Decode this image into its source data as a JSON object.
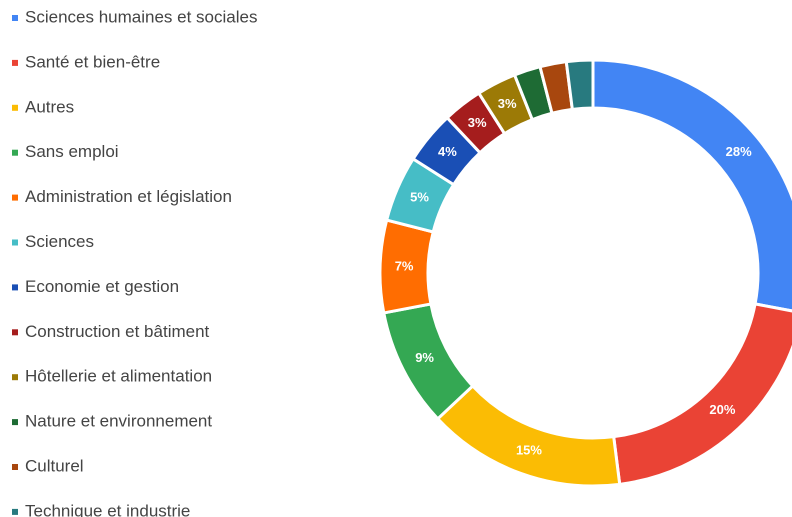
{
  "chart_data": {
    "type": "donut",
    "categories": [
      "Sciences humaines et sociales",
      "Santé et bien-être",
      "Autres",
      "Sans emploi",
      "Administration et législation",
      "Sciences",
      "Economie et gestion",
      "Construction et bâtiment",
      "Hôtellerie et alimentation",
      "Nature et environnement",
      "Culturel",
      "Technique et industrie"
    ],
    "values": [
      28,
      20,
      15,
      9,
      7,
      5,
      4,
      3,
      3,
      2,
      2,
      2
    ],
    "value_labels": [
      "28%",
      "20%",
      "15%",
      "9%",
      "7%",
      "5%",
      "4%",
      "3%",
      "3%",
      null,
      null,
      null
    ],
    "colors": [
      "#4285f4",
      "#ea4335",
      "#fbbc04",
      "#34a853",
      "#ff6d01",
      "#46bdc6",
      "#1a4fb5",
      "#a51d1d",
      "#9c7a06",
      "#1e6b34",
      "#a8470e",
      "#287a7f"
    ],
    "legend": "left"
  }
}
